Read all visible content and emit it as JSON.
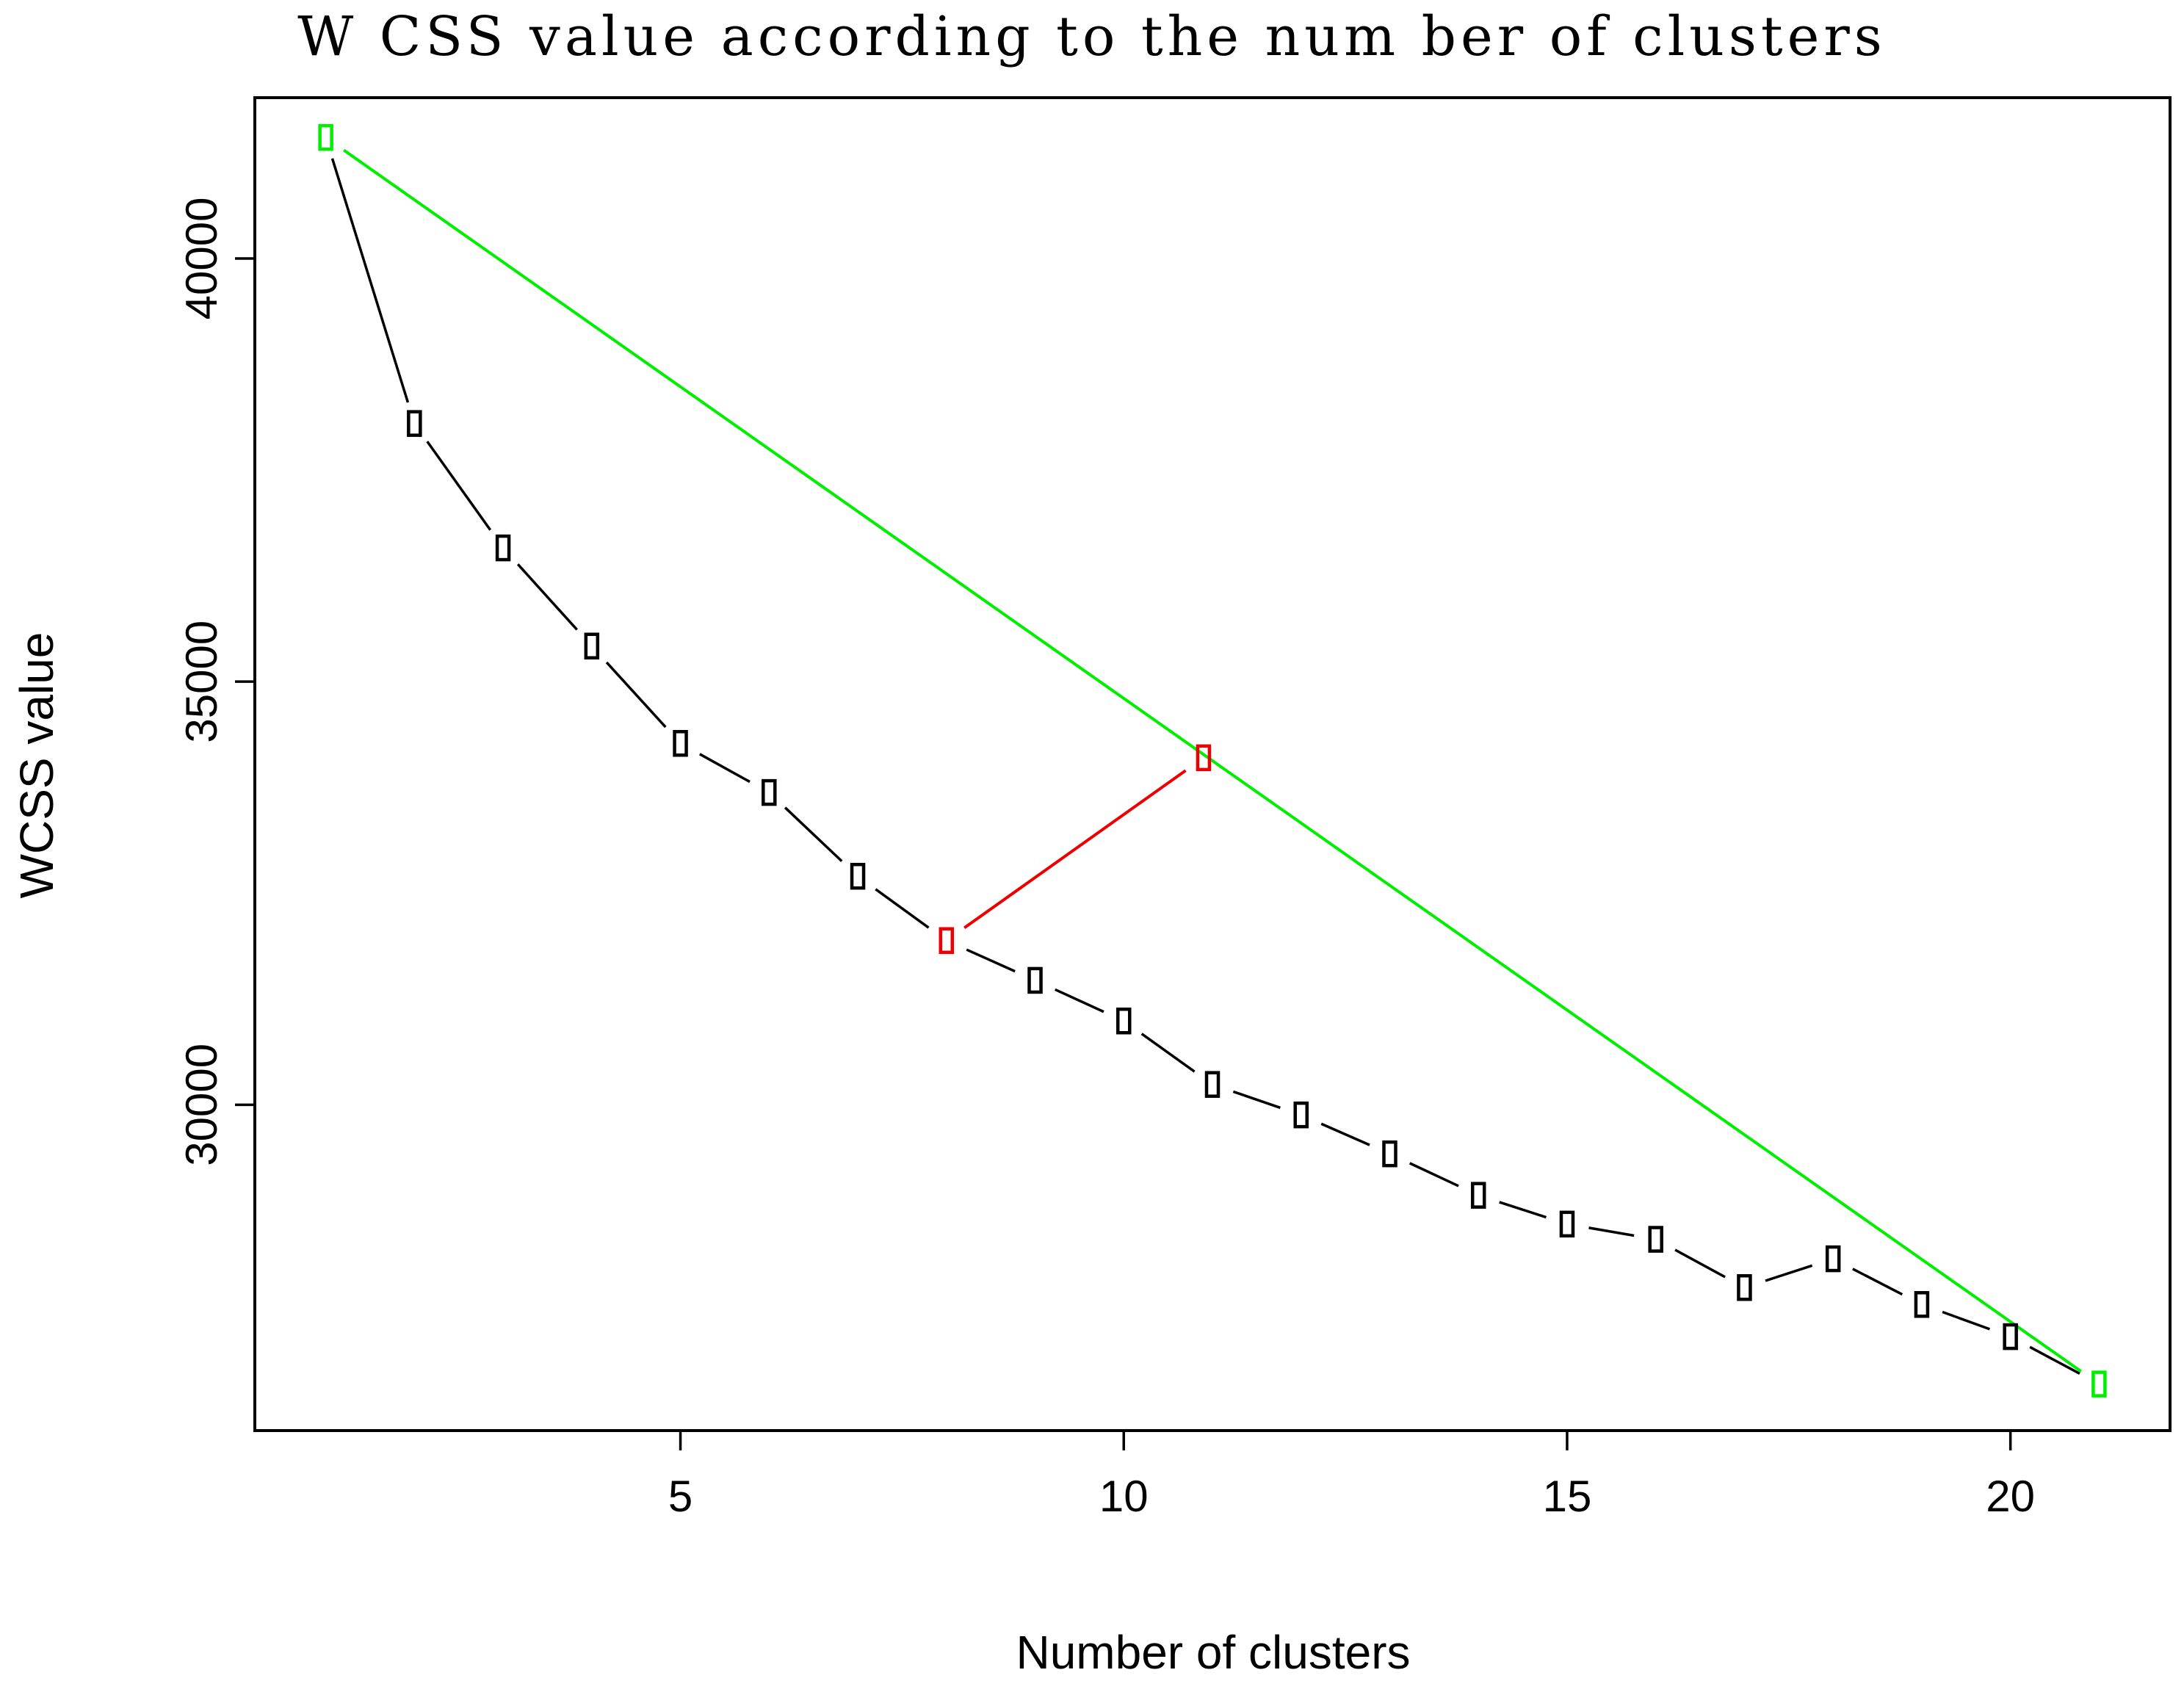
{
  "chart_data": {
    "type": "line",
    "title": "W CSS value according to the num ber of clusters",
    "xlabel": "Number of clusters",
    "ylabel": "WCSS value",
    "xlim": [
      0.2,
      21.8
    ],
    "ylim": [
      26150,
      41900
    ],
    "x_ticks": [
      5,
      10,
      15,
      20
    ],
    "y_ticks": [
      30000,
      35000,
      40000
    ],
    "grid": false,
    "series": [
      {
        "points": [
          {
            "x": 1,
            "y": 41430
          },
          {
            "x": 2,
            "y": 38050
          },
          {
            "x": 3,
            "y": 36580
          },
          {
            "x": 4,
            "y": 35420
          },
          {
            "x": 5,
            "y": 34270
          },
          {
            "x": 6,
            "y": 33690
          },
          {
            "x": 7,
            "y": 32700
          },
          {
            "x": 8,
            "y": 31940
          },
          {
            "x": 9,
            "y": 31470
          },
          {
            "x": 10,
            "y": 30990
          },
          {
            "x": 11,
            "y": 30240
          },
          {
            "x": 12,
            "y": 29880
          },
          {
            "x": 13,
            "y": 29420
          },
          {
            "x": 14,
            "y": 28930
          },
          {
            "x": 15,
            "y": 28590
          },
          {
            "x": 16,
            "y": 28410
          },
          {
            "x": 17,
            "y": 27840
          },
          {
            "x": 18,
            "y": 28180
          },
          {
            "x": 19,
            "y": 27640
          },
          {
            "x": 20,
            "y": 27260
          },
          {
            "x": 21,
            "y": 26700
          }
        ]
      }
    ],
    "reference_line": {
      "from": {
        "x": 1,
        "y": 41430
      },
      "to": {
        "x": 21,
        "y": 26700
      }
    },
    "perpendicular_segment": {
      "from": {
        "x": 8,
        "y": 31940
      },
      "to": {
        "x": 10.9,
        "y": 34100
      }
    },
    "highlight_indices": [
      7
    ],
    "endpoint_indices": [
      0,
      20
    ],
    "colors": {
      "main": "#000000",
      "reference": "#00ee00",
      "highlight": "#ee0000",
      "axis": "#000000"
    },
    "icon_names": [
      "rectangle-marker"
    ]
  }
}
